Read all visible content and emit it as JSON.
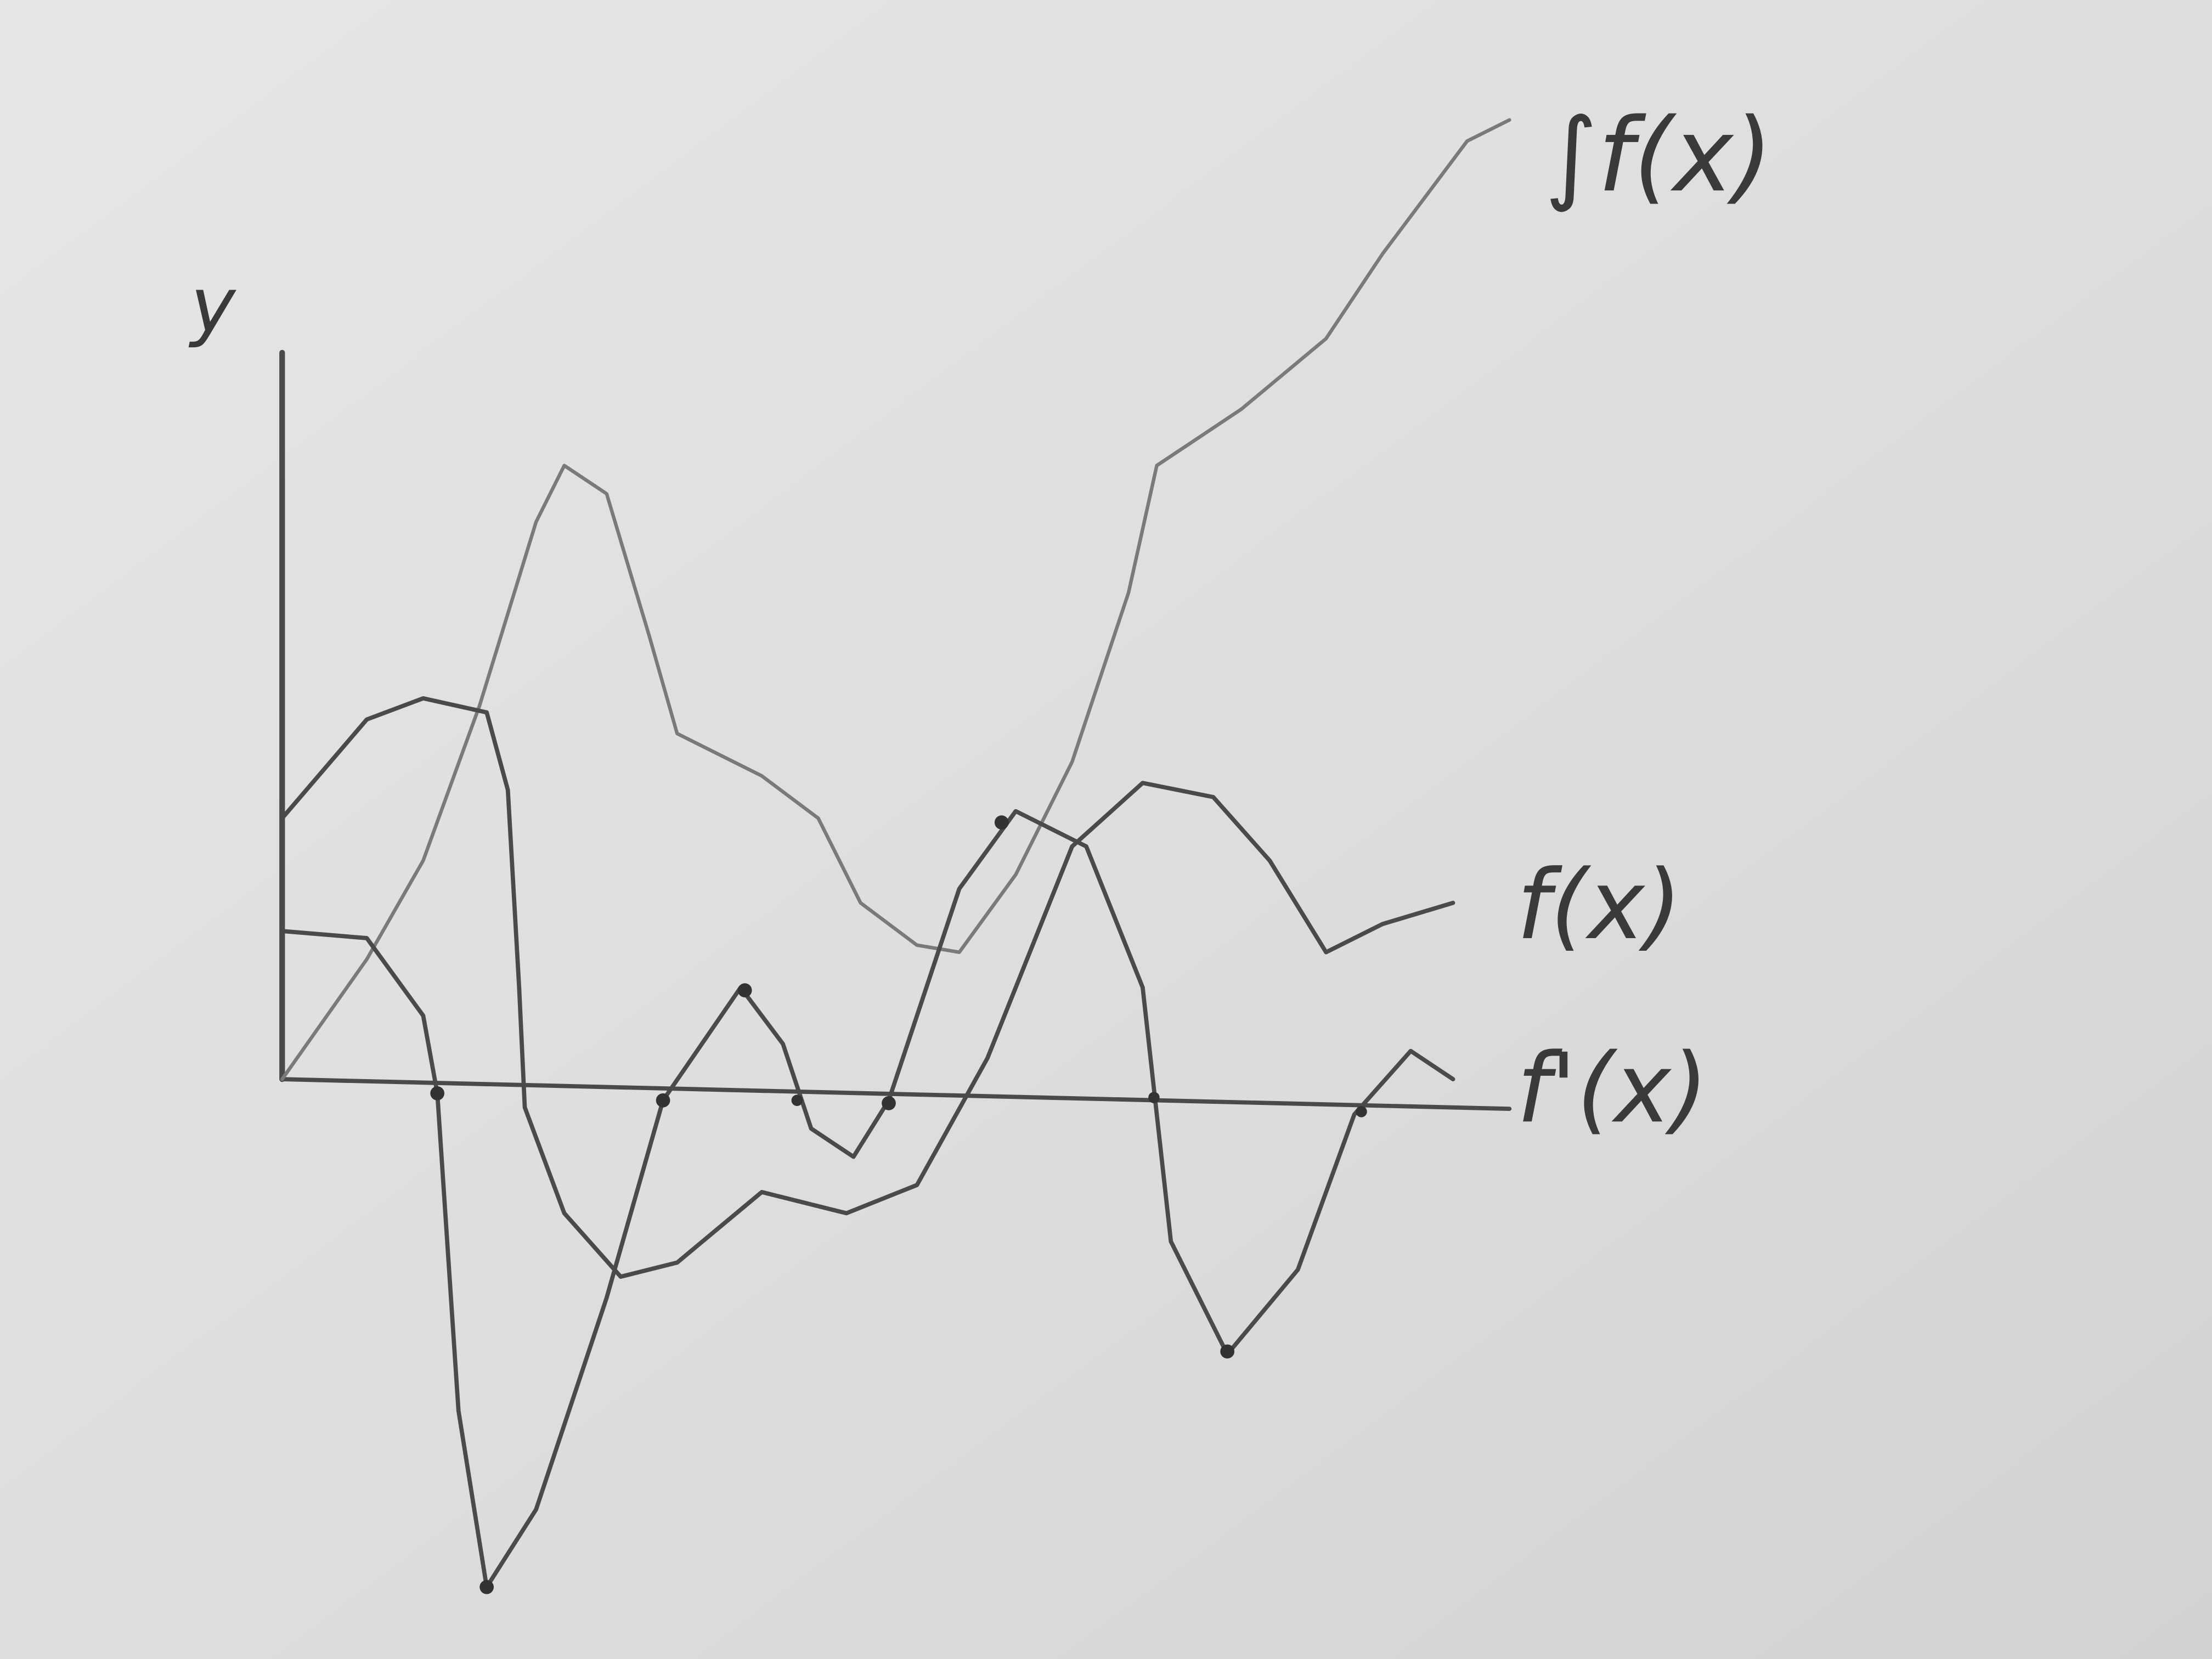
{
  "axis_label": "y",
  "labels": {
    "integral": "∫f(x)",
    "function": "f(x)",
    "derivative": "f'(x)"
  }
}
